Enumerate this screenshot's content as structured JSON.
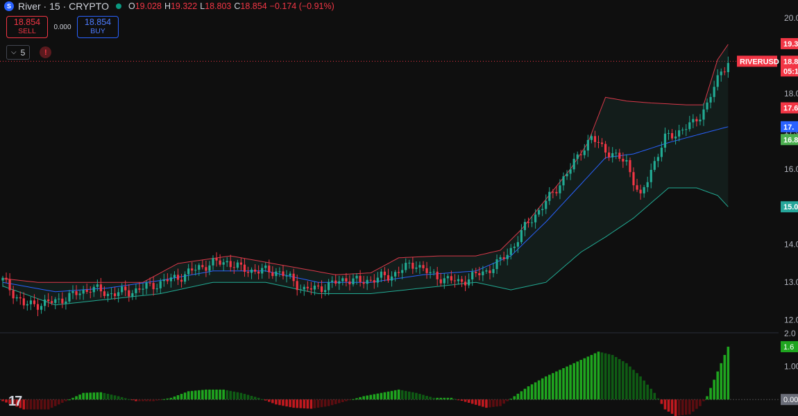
{
  "header": {
    "logo_glyph": "S",
    "symbol_title": "River · 15 · CRYPTO",
    "open_label": "O",
    "open_value": "19.028",
    "high_label": "H",
    "high_value": "19.322",
    "low_label": "L",
    "low_value": "18.803",
    "close_label": "C",
    "close_value": "18.854",
    "change": "−0.174 (−0.91%)"
  },
  "trade": {
    "sell_price": "18.854",
    "sell_label": "SELL",
    "spread": "0.000",
    "buy_price": "18.854",
    "buy_label": "BUY"
  },
  "indicators": {
    "collapse_glyph": "⌵",
    "count": "5",
    "warning_glyph": "!"
  },
  "branding": {
    "logo_text": "17"
  },
  "colors": {
    "up": "#22ab94",
    "down": "#f23645",
    "mid": "#2962ff",
    "lower": "#4caf50",
    "envelope": "#d9394a",
    "osc_up": "#1fa51f",
    "osc_down": "#c2191f"
  },
  "chart_data": {
    "type": "candlestick",
    "symbol": "RIVERUSD",
    "ylim": [
      11.7,
      20.2
    ],
    "price_ticks": [
      "12.0",
      "13.0",
      "14.0",
      "15.0",
      "16.0",
      "17.0",
      "18.0",
      "20.0"
    ],
    "current_price": 18.854,
    "price_labels": [
      {
        "text": "19.3",
        "price": 19.32,
        "color": "#f23645"
      },
      {
        "text": "RIVERUSD",
        "price": 18.854,
        "color": "#f23645"
      },
      {
        "text": "18.8",
        "price": 18.854,
        "color": "#f23645"
      },
      {
        "text": "05:1",
        "price": 18.6,
        "color": "#f23645"
      },
      {
        "text": "17.6",
        "price": 17.62,
        "color": "#f23645"
      },
      {
        "text": "17.",
        "price": 17.12,
        "color": "#2962ff"
      },
      {
        "text": "16.8",
        "price": 16.78,
        "color": "#4caf50"
      },
      {
        "text": "15.0",
        "price": 15.0,
        "color": "#26a69a"
      }
    ],
    "close_path": [
      [
        0,
        13.05
      ],
      [
        6,
        12.4
      ],
      [
        13,
        12.45
      ],
      [
        20,
        12.65
      ],
      [
        25,
        12.85
      ],
      [
        30,
        12.7
      ],
      [
        36,
        12.75
      ],
      [
        42,
        12.9
      ],
      [
        47,
        13.05
      ],
      [
        52,
        13.2
      ],
      [
        56,
        13.4
      ],
      [
        60,
        13.5
      ],
      [
        64,
        13.55
      ],
      [
        68,
        13.35
      ],
      [
        73,
        13.3
      ],
      [
        78,
        13.3
      ],
      [
        82,
        13.1
      ],
      [
        86,
        12.8
      ],
      [
        90,
        12.85
      ],
      [
        94,
        12.95
      ],
      [
        98,
        13.1
      ],
      [
        102,
        13.0
      ],
      [
        106,
        13.1
      ],
      [
        110,
        13.15
      ],
      [
        114,
        13.35
      ],
      [
        118,
        13.5
      ],
      [
        122,
        13.2
      ],
      [
        126,
        13.1
      ],
      [
        130,
        13.0
      ],
      [
        134,
        13.15
      ],
      [
        138,
        13.3
      ],
      [
        142,
        13.55
      ],
      [
        146,
        14.0
      ],
      [
        150,
        14.6
      ],
      [
        154,
        15.0
      ],
      [
        158,
        15.5
      ],
      [
        162,
        16.0
      ],
      [
        165,
        16.5
      ],
      [
        168,
        16.8
      ],
      [
        171,
        16.6
      ],
      [
        175,
        16.3
      ],
      [
        178,
        16.2
      ],
      [
        182,
        15.2
      ],
      [
        185,
        16.0
      ],
      [
        189,
        16.8
      ],
      [
        193,
        17.0
      ],
      [
        197,
        17.2
      ],
      [
        201,
        17.7
      ],
      [
        205,
        18.6
      ],
      [
        207,
        18.85
      ]
    ],
    "bands": {
      "upper": [
        [
          0,
          13.1
        ],
        [
          10,
          13.0
        ],
        [
          15,
          13.0
        ],
        [
          30,
          13.0
        ],
        [
          40,
          13.0
        ],
        [
          50,
          13.5
        ],
        [
          65,
          13.7
        ],
        [
          80,
          13.45
        ],
        [
          95,
          13.2
        ],
        [
          105,
          13.25
        ],
        [
          113,
          13.65
        ],
        [
          125,
          13.7
        ],
        [
          135,
          13.7
        ],
        [
          142,
          13.85
        ],
        [
          148,
          14.4
        ],
        [
          155,
          15.2
        ],
        [
          162,
          16.0
        ],
        [
          167,
          16.7
        ],
        [
          172,
          17.9
        ],
        [
          178,
          17.8
        ],
        [
          185,
          17.75
        ],
        [
          195,
          17.7
        ],
        [
          200,
          17.7
        ],
        [
          204,
          18.9
        ],
        [
          207,
          19.3
        ]
      ],
      "mid": [
        [
          0,
          13.0
        ],
        [
          15,
          12.75
        ],
        [
          30,
          12.85
        ],
        [
          45,
          13.05
        ],
        [
          60,
          13.3
        ],
        [
          75,
          13.3
        ],
        [
          90,
          13.0
        ],
        [
          105,
          13.0
        ],
        [
          120,
          13.2
        ],
        [
          135,
          13.3
        ],
        [
          145,
          13.7
        ],
        [
          155,
          14.6
        ],
        [
          165,
          15.6
        ],
        [
          172,
          16.3
        ],
        [
          180,
          16.4
        ],
        [
          190,
          16.7
        ],
        [
          198,
          16.9
        ],
        [
          207,
          17.12
        ]
      ],
      "lower": [
        [
          0,
          12.9
        ],
        [
          15,
          12.4
        ],
        [
          30,
          12.55
        ],
        [
          45,
          12.7
        ],
        [
          60,
          13.0
        ],
        [
          75,
          13.0
        ],
        [
          90,
          12.7
        ],
        [
          105,
          12.7
        ],
        [
          120,
          12.85
        ],
        [
          135,
          13.0
        ],
        [
          145,
          12.8
        ],
        [
          155,
          13.0
        ],
        [
          165,
          13.8
        ],
        [
          172,
          14.2
        ],
        [
          180,
          14.7
        ],
        [
          190,
          15.5
        ],
        [
          198,
          15.5
        ],
        [
          204,
          15.3
        ],
        [
          207,
          15.0
        ]
      ]
    },
    "oscillator": {
      "ylim": [
        -0.5,
        2.0
      ],
      "ticks": [
        "2.0",
        "1.00",
        "0.00"
      ],
      "last_value": "1.6",
      "path": [
        [
          0,
          -0.05
        ],
        [
          6,
          -0.3
        ],
        [
          13,
          -0.3
        ],
        [
          18,
          -0.05
        ],
        [
          23,
          0.2
        ],
        [
          28,
          0.22
        ],
        [
          33,
          0.1
        ],
        [
          38,
          -0.05
        ],
        [
          43,
          -0.05
        ],
        [
          48,
          0.05
        ],
        [
          53,
          0.25
        ],
        [
          58,
          0.3
        ],
        [
          63,
          0.3
        ],
        [
          68,
          0.2
        ],
        [
          73,
          0.05
        ],
        [
          78,
          -0.15
        ],
        [
          83,
          -0.25
        ],
        [
          88,
          -0.28
        ],
        [
          93,
          -0.2
        ],
        [
          98,
          -0.05
        ],
        [
          103,
          0.1
        ],
        [
          108,
          0.2
        ],
        [
          113,
          0.3
        ],
        [
          118,
          0.2
        ],
        [
          123,
          0.05
        ],
        [
          128,
          0.05
        ],
        [
          133,
          -0.1
        ],
        [
          138,
          -0.25
        ],
        [
          142,
          -0.2
        ],
        [
          146,
          0.1
        ],
        [
          150,
          0.4
        ],
        [
          155,
          0.7
        ],
        [
          160,
          0.95
        ],
        [
          165,
          1.2
        ],
        [
          170,
          1.45
        ],
        [
          174,
          1.35
        ],
        [
          178,
          1.1
        ],
        [
          182,
          0.7
        ],
        [
          186,
          0.2
        ],
        [
          189,
          -0.3
        ],
        [
          192,
          -0.5
        ],
        [
          196,
          -0.45
        ],
        [
          199,
          -0.2
        ],
        [
          201,
          0.1
        ],
        [
          203,
          0.6
        ],
        [
          205,
          1.1
        ],
        [
          207,
          1.6
        ]
      ]
    }
  }
}
